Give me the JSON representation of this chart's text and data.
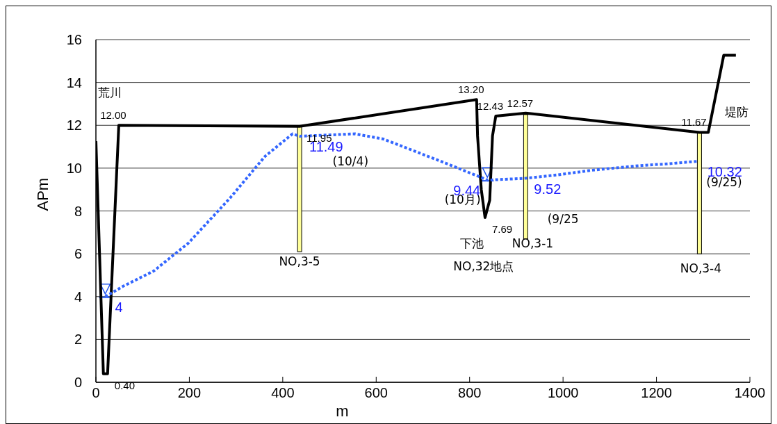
{
  "chart_data": {
    "type": "line",
    "xlabel": "m",
    "ylabel": "APm",
    "xlim": [
      0,
      1400
    ],
    "ylim": [
      0,
      16
    ],
    "xticks": [
      0,
      200,
      400,
      600,
      800,
      1000,
      1200,
      1400
    ],
    "yticks": [
      0,
      2,
      4,
      6,
      8,
      10,
      12,
      14,
      16
    ],
    "grid": "y",
    "marker": "none",
    "series": [
      {
        "type": "bar",
        "color": "#ffff99",
        "x": [
          436,
          920,
          1292
        ],
        "base": [
          6.1,
          6.7,
          6.0
        ],
        "values": [
          5.85,
          5.8,
          5.67
        ]
      },
      {
        "line_style": "solid",
        "color": "#000000",
        "x": [
          0,
          16,
          25,
          49,
          436,
          815,
          817,
          825,
          833,
          843,
          849,
          856,
          920,
          1292,
          1311,
          1344,
          1370
        ],
        "values": [
          11.26,
          0.4,
          0.4,
          12.0,
          11.95,
          13.2,
          11.5,
          9.0,
          7.69,
          8.5,
          11.5,
          12.43,
          12.57,
          11.67,
          11.67,
          15.27,
          15.27
        ],
        "value_labels": [
          null,
          null,
          "0.40",
          "12.00",
          "11.95",
          "13.20",
          null,
          null,
          "7.69",
          null,
          null,
          "12.43",
          "12.57",
          "11.67",
          null,
          null,
          null
        ]
      },
      {
        "line_style": "dotted",
        "color": "#3366ff",
        "x": [
          20,
          57,
          124,
          198,
          287,
          362,
          421,
          436,
          555,
          615,
          749,
          823,
          838,
          897,
          917,
          987,
          1061,
          1165,
          1224,
          1288
        ],
        "values": [
          4,
          4.47,
          5.2,
          6.5,
          8.6,
          10.55,
          11.6,
          11.49,
          11.6,
          11.36,
          10.23,
          9.58,
          9.44,
          9.5,
          9.52,
          9.68,
          9.9,
          10.12,
          10.2,
          10.32
        ],
        "value_labels": [
          "4",
          null,
          null,
          null,
          null,
          null,
          null,
          "11.49",
          null,
          null,
          null,
          null,
          "9.44",
          null,
          "9.52",
          null,
          null,
          null,
          null,
          "10.32"
        ]
      }
    ],
    "annotations": [
      "荒川",
      "堤防",
      "(10/4)",
      "(10月)",
      "(9/25",
      "(9/25)",
      "NO,3-5",
      "下池",
      "NO,32地点",
      "NO,3-1",
      "NO,3-4"
    ]
  }
}
